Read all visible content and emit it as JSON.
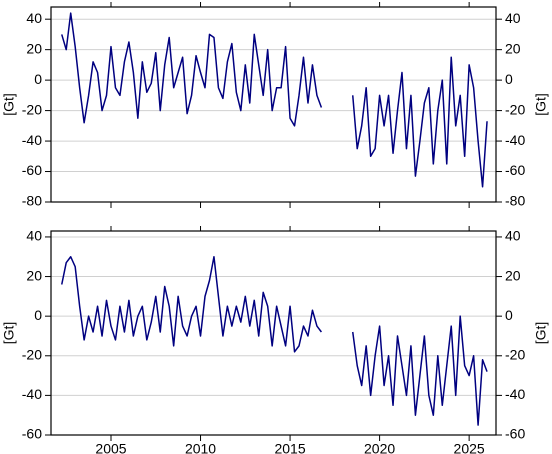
{
  "chart_data": [
    {
      "type": "line",
      "ylabel": "[Gt]",
      "grid": true,
      "xlim": [
        2001.65,
        2026.5
      ],
      "xticks": [
        2005,
        2010,
        2015,
        2020,
        2025
      ],
      "ylim": [
        -80,
        48
      ],
      "yticks": [
        -80,
        -60,
        -40,
        -20,
        0,
        20,
        40
      ],
      "x": [
        2002.25,
        2002.5,
        2002.75,
        2003.0,
        2003.25,
        2003.5,
        2003.75,
        2004.0,
        2004.25,
        2004.5,
        2004.75,
        2005.0,
        2005.25,
        2005.5,
        2005.75,
        2006.0,
        2006.25,
        2006.5,
        2006.75,
        2007.0,
        2007.25,
        2007.5,
        2007.75,
        2008.0,
        2008.25,
        2008.5,
        2008.75,
        2009.0,
        2009.25,
        2009.5,
        2009.75,
        2010.0,
        2010.25,
        2010.5,
        2010.75,
        2011.0,
        2011.25,
        2011.5,
        2011.75,
        2012.0,
        2012.25,
        2012.5,
        2012.75,
        2013.0,
        2013.25,
        2013.5,
        2013.75,
        2014.0,
        2014.25,
        2014.5,
        2014.75,
        2015.0,
        2015.25,
        2015.5,
        2015.75,
        2016.0,
        2016.25,
        2016.5,
        2016.75,
        2017.5,
        2018.5,
        2018.75,
        2019.0,
        2019.25,
        2019.5,
        2019.75,
        2020.0,
        2020.25,
        2020.5,
        2020.75,
        2021.0,
        2021.25,
        2021.5,
        2021.75,
        2022.0,
        2022.25,
        2022.5,
        2022.75,
        2023.0,
        2023.25,
        2023.5,
        2023.75,
        2024.0,
        2024.25,
        2024.5,
        2024.75,
        2025.0,
        2025.25,
        2025.5,
        2025.75,
        2026.0
      ],
      "series": [
        {
          "color": "#000080",
          "values": [
            30,
            20,
            44,
            22,
            -5,
            -28,
            -10,
            12,
            5,
            -20,
            -10,
            22,
            -5,
            -10,
            12,
            25,
            5,
            -25,
            12,
            -8,
            -2,
            18,
            -20,
            10,
            28,
            -5,
            5,
            15,
            -22,
            -10,
            16,
            5,
            -5,
            30,
            28,
            -5,
            -12,
            12,
            24,
            -8,
            -20,
            10,
            -15,
            30,
            10,
            -10,
            20,
            -20,
            -5,
            -5,
            22,
            -25,
            -30,
            -10,
            15,
            -15,
            10,
            -10,
            -18,
            null,
            -10,
            -45,
            -30,
            -5,
            -50,
            -45,
            -10,
            -30,
            -10,
            -48,
            -20,
            5,
            -45,
            -10,
            -63,
            -40,
            -15,
            -5,
            -55,
            -20,
            0,
            -55,
            15,
            -30,
            -10,
            -50,
            10,
            -5,
            -40,
            -70,
            -27
          ]
        }
      ]
    },
    {
      "type": "line",
      "ylabel": "[Gt]",
      "grid": true,
      "xlim": [
        2001.65,
        2026.5
      ],
      "xticks": [
        2005,
        2010,
        2015,
        2020,
        2025
      ],
      "ylim": [
        -60,
        43
      ],
      "yticks": [
        -60,
        -40,
        -20,
        0,
        20,
        40
      ],
      "x": [
        2002.25,
        2002.5,
        2002.75,
        2003.0,
        2003.25,
        2003.5,
        2003.75,
        2004.0,
        2004.25,
        2004.5,
        2004.75,
        2005.0,
        2005.25,
        2005.5,
        2005.75,
        2006.0,
        2006.25,
        2006.5,
        2006.75,
        2007.0,
        2007.25,
        2007.5,
        2007.75,
        2008.0,
        2008.25,
        2008.5,
        2008.75,
        2009.0,
        2009.25,
        2009.5,
        2009.75,
        2010.0,
        2010.25,
        2010.5,
        2010.75,
        2011.0,
        2011.25,
        2011.5,
        2011.75,
        2012.0,
        2012.25,
        2012.5,
        2012.75,
        2013.0,
        2013.25,
        2013.5,
        2013.75,
        2014.0,
        2014.25,
        2014.5,
        2014.75,
        2015.0,
        2015.25,
        2015.5,
        2015.75,
        2016.0,
        2016.25,
        2016.5,
        2016.75,
        2017.5,
        2018.5,
        2018.75,
        2019.0,
        2019.25,
        2019.5,
        2019.75,
        2020.0,
        2020.25,
        2020.5,
        2020.75,
        2021.0,
        2021.25,
        2021.5,
        2021.75,
        2022.0,
        2022.25,
        2022.5,
        2022.75,
        2023.0,
        2023.25,
        2023.5,
        2023.75,
        2024.0,
        2024.25,
        2024.5,
        2024.75,
        2025.0,
        2025.25,
        2025.5,
        2025.75,
        2026.0
      ],
      "series": [
        {
          "color": "#000080",
          "values": [
            16,
            27,
            30,
            25,
            5,
            -12,
            0,
            -8,
            5,
            -10,
            8,
            -5,
            -12,
            5,
            -8,
            8,
            -10,
            0,
            5,
            -12,
            -3,
            10,
            -8,
            15,
            5,
            -15,
            10,
            -5,
            -10,
            0,
            5,
            -10,
            10,
            18,
            30,
            10,
            -10,
            5,
            -5,
            5,
            -3,
            10,
            -5,
            8,
            -10,
            12,
            5,
            -15,
            5,
            -5,
            -15,
            5,
            -18,
            -15,
            -5,
            -10,
            3,
            -5,
            -8,
            null,
            -8,
            -25,
            -35,
            -15,
            -40,
            -20,
            -5,
            -35,
            -20,
            -45,
            -10,
            -25,
            -40,
            -15,
            -50,
            -30,
            -10,
            -40,
            -50,
            -20,
            -45,
            -25,
            -5,
            -40,
            0,
            -25,
            -30,
            -20,
            -55,
            -22,
            -28
          ]
        }
      ]
    }
  ]
}
